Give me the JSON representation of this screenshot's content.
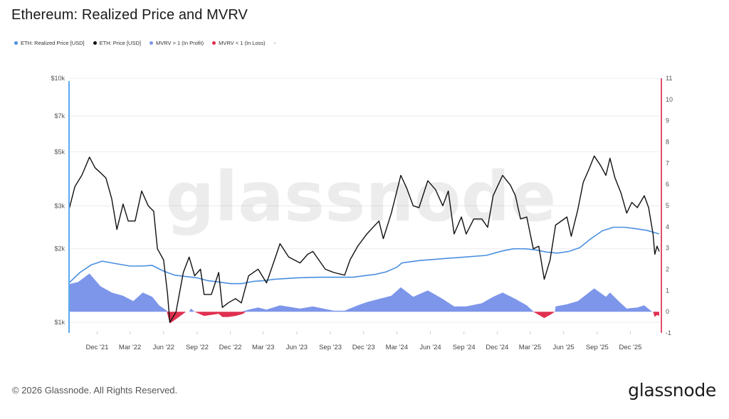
{
  "page": {
    "title": "Ethereum: Realized Price and MVRV",
    "copyright": "© 2026 Glassnode. All Rights Reserved.",
    "brand": "glassnode",
    "watermark": "glassnode"
  },
  "legend": [
    {
      "label": "ETH: Realized Price [USD]",
      "color": "#4a8fe0"
    },
    {
      "label": "ETH: Price [USD]",
      "color": "#111111"
    },
    {
      "label": "MVRV > 1 (In Profit)",
      "color": "#7d96ea"
    },
    {
      "label": "MVRV < 1 (In Loss)",
      "color": "#e03050"
    }
  ],
  "legend_extra": "-",
  "colors": {
    "price": "#111111",
    "realized": "#4a8fe0",
    "profit": "#7d96ea",
    "loss": "#e03050",
    "left_axis": "#5aaaf0",
    "right_axis": "#e0506e",
    "grid": "#ececec"
  },
  "chart_data": {
    "type": "line",
    "title": "Ethereum: Realized Price and MVRV",
    "y_left": {
      "scale": "log",
      "range": [
        1000,
        10000
      ],
      "ticks": [
        1000,
        2000,
        3000,
        5000,
        7000,
        10000
      ],
      "tick_labels": [
        "$1k",
        "$2k",
        "$3k",
        "$5k",
        "$7k",
        "$10k"
      ]
    },
    "y_right": {
      "scale": "linear",
      "range": [
        -1,
        11
      ],
      "ticks": [
        -1,
        0,
        1,
        2,
        3,
        4,
        5,
        6,
        7,
        8,
        9,
        10,
        11
      ],
      "tick_labels": [
        "-1",
        "0",
        "1",
        "2",
        "3",
        "4",
        "5",
        "6",
        "7",
        "8",
        "9",
        "10",
        "11"
      ]
    },
    "x": {
      "range": [
        "2021-09-15",
        "2026-02-20"
      ],
      "ticks": [
        "2021-12-01",
        "2022-03-01",
        "2022-06-01",
        "2022-09-01",
        "2022-12-01",
        "2023-03-01",
        "2023-06-01",
        "2023-09-01",
        "2023-12-01",
        "2024-03-01",
        "2024-06-01",
        "2024-09-01",
        "2024-12-01",
        "2025-03-01",
        "2025-06-01",
        "2025-09-01",
        "2025-12-01"
      ],
      "tick_labels": [
        "Dec '21",
        "Mar '22",
        "Jun '22",
        "Sep '22",
        "Dec '22",
        "Mar '23",
        "Jun '23",
        "Sep '23",
        "Dec '23",
        "Mar '24",
        "Jun '24",
        "Sep '24",
        "Dec '24",
        "Mar '25",
        "Jun '25",
        "Sep '25",
        "Dec '25"
      ]
    },
    "grid": true,
    "series": [
      {
        "name": "ETH: Price [USD]",
        "axis": "left",
        "points": [
          [
            "2021-09-15",
            2900
          ],
          [
            "2021-10-01",
            3600
          ],
          [
            "2021-10-20",
            4000
          ],
          [
            "2021-11-10",
            4750
          ],
          [
            "2021-11-25",
            4300
          ],
          [
            "2021-12-10",
            4100
          ],
          [
            "2021-12-25",
            3900
          ],
          [
            "2022-01-10",
            3200
          ],
          [
            "2022-01-24",
            2400
          ],
          [
            "2022-02-10",
            3050
          ],
          [
            "2022-02-24",
            2600
          ],
          [
            "2022-03-15",
            2600
          ],
          [
            "2022-04-02",
            3450
          ],
          [
            "2022-04-20",
            3000
          ],
          [
            "2022-05-05",
            2850
          ],
          [
            "2022-05-15",
            2000
          ],
          [
            "2022-06-01",
            1800
          ],
          [
            "2022-06-12",
            1300
          ],
          [
            "2022-06-18",
            1000
          ],
          [
            "2022-07-05",
            1100
          ],
          [
            "2022-07-25",
            1600
          ],
          [
            "2022-08-10",
            1850
          ],
          [
            "2022-08-25",
            1550
          ],
          [
            "2022-09-10",
            1650
          ],
          [
            "2022-09-20",
            1300
          ],
          [
            "2022-10-10",
            1300
          ],
          [
            "2022-10-30",
            1600
          ],
          [
            "2022-11-09",
            1150
          ],
          [
            "2022-11-25",
            1200
          ],
          [
            "2022-12-15",
            1250
          ],
          [
            "2022-12-31",
            1200
          ],
          [
            "2023-01-20",
            1550
          ],
          [
            "2023-02-15",
            1650
          ],
          [
            "2023-03-10",
            1450
          ],
          [
            "2023-04-01",
            1800
          ],
          [
            "2023-04-16",
            2100
          ],
          [
            "2023-05-10",
            1850
          ],
          [
            "2023-06-10",
            1750
          ],
          [
            "2023-07-01",
            1900
          ],
          [
            "2023-07-15",
            1950
          ],
          [
            "2023-08-18",
            1650
          ],
          [
            "2023-09-10",
            1600
          ],
          [
            "2023-10-10",
            1560
          ],
          [
            "2023-10-25",
            1800
          ],
          [
            "2023-11-15",
            2050
          ],
          [
            "2023-12-10",
            2300
          ],
          [
            "2024-01-12",
            2600
          ],
          [
            "2024-01-24",
            2200
          ],
          [
            "2024-02-15",
            2800
          ],
          [
            "2024-03-12",
            4000
          ],
          [
            "2024-03-28",
            3550
          ],
          [
            "2024-04-15",
            3000
          ],
          [
            "2024-05-01",
            2950
          ],
          [
            "2024-05-25",
            3800
          ],
          [
            "2024-06-15",
            3500
          ],
          [
            "2024-07-05",
            3000
          ],
          [
            "2024-07-20",
            3450
          ],
          [
            "2024-08-05",
            2300
          ],
          [
            "2024-08-25",
            2700
          ],
          [
            "2024-09-07",
            2300
          ],
          [
            "2024-09-28",
            2650
          ],
          [
            "2024-10-20",
            2650
          ],
          [
            "2024-11-05",
            2450
          ],
          [
            "2024-11-20",
            3300
          ],
          [
            "2024-12-16",
            4000
          ],
          [
            "2025-01-06",
            3650
          ],
          [
            "2025-01-20",
            3300
          ],
          [
            "2025-02-03",
            2650
          ],
          [
            "2025-02-20",
            2700
          ],
          [
            "2025-03-10",
            2000
          ],
          [
            "2025-03-25",
            2050
          ],
          [
            "2025-04-09",
            1500
          ],
          [
            "2025-04-25",
            1800
          ],
          [
            "2025-05-10",
            2500
          ],
          [
            "2025-06-10",
            2700
          ],
          [
            "2025-06-22",
            2250
          ],
          [
            "2025-07-10",
            2900
          ],
          [
            "2025-07-25",
            3750
          ],
          [
            "2025-08-10",
            4250
          ],
          [
            "2025-08-24",
            4800
          ],
          [
            "2025-09-10",
            4400
          ],
          [
            "2025-09-25",
            4000
          ],
          [
            "2025-10-06",
            4700
          ],
          [
            "2025-10-20",
            3900
          ],
          [
            "2025-11-05",
            3400
          ],
          [
            "2025-11-21",
            2800
          ],
          [
            "2025-12-05",
            3100
          ],
          [
            "2025-12-20",
            2950
          ],
          [
            "2026-01-08",
            3300
          ],
          [
            "2026-01-20",
            2950
          ],
          [
            "2026-02-01",
            2300
          ],
          [
            "2026-02-06",
            1900
          ],
          [
            "2026-02-12",
            2050
          ],
          [
            "2026-02-18",
            1950
          ]
        ]
      },
      {
        "name": "ETH: Realized Price [USD]",
        "axis": "left",
        "points": [
          [
            "2021-09-15",
            1450
          ],
          [
            "2021-10-15",
            1600
          ],
          [
            "2021-11-15",
            1720
          ],
          [
            "2021-12-15",
            1780
          ],
          [
            "2022-01-20",
            1740
          ],
          [
            "2022-03-01",
            1700
          ],
          [
            "2022-04-01",
            1700
          ],
          [
            "2022-05-01",
            1710
          ],
          [
            "2022-06-01",
            1620
          ],
          [
            "2022-07-01",
            1560
          ],
          [
            "2022-08-01",
            1540
          ],
          [
            "2022-09-01",
            1520
          ],
          [
            "2022-10-01",
            1480
          ],
          [
            "2022-11-01",
            1460
          ],
          [
            "2022-12-01",
            1440
          ],
          [
            "2023-01-01",
            1440
          ],
          [
            "2023-02-01",
            1470
          ],
          [
            "2023-03-01",
            1480
          ],
          [
            "2023-04-01",
            1500
          ],
          [
            "2023-06-01",
            1520
          ],
          [
            "2023-08-01",
            1530
          ],
          [
            "2023-09-01",
            1530
          ],
          [
            "2023-11-01",
            1530
          ],
          [
            "2024-01-01",
            1570
          ],
          [
            "2024-02-01",
            1610
          ],
          [
            "2024-03-01",
            1680
          ],
          [
            "2024-03-15",
            1750
          ],
          [
            "2024-05-01",
            1790
          ],
          [
            "2024-07-01",
            1820
          ],
          [
            "2024-09-01",
            1850
          ],
          [
            "2024-11-01",
            1880
          ],
          [
            "2024-12-15",
            1960
          ],
          [
            "2025-01-15",
            2000
          ],
          [
            "2025-02-15",
            2000
          ],
          [
            "2025-03-15",
            1980
          ],
          [
            "2025-04-15",
            1940
          ],
          [
            "2025-05-15",
            1920
          ],
          [
            "2025-06-15",
            1950
          ],
          [
            "2025-07-15",
            2020
          ],
          [
            "2025-08-15",
            2200
          ],
          [
            "2025-09-15",
            2370
          ],
          [
            "2025-10-15",
            2450
          ],
          [
            "2025-11-15",
            2450
          ],
          [
            "2025-12-15",
            2420
          ],
          [
            "2026-01-15",
            2380
          ],
          [
            "2026-02-18",
            2300
          ]
        ]
      },
      {
        "name": "MVRV > 1 (In Profit)",
        "axis": "right",
        "points": [
          [
            "2021-09-15",
            1.3
          ],
          [
            "2021-10-10",
            1.4
          ],
          [
            "2021-11-10",
            1.8
          ],
          [
            "2021-12-10",
            1.2
          ],
          [
            "2022-01-10",
            0.9
          ],
          [
            "2022-02-10",
            0.75
          ],
          [
            "2022-03-10",
            0.5
          ],
          [
            "2022-04-05",
            0.9
          ],
          [
            "2022-05-01",
            0.7
          ],
          [
            "2022-05-20",
            0.3
          ],
          [
            "2022-06-10",
            0.05
          ],
          [
            "2022-06-12",
            0
          ],
          [
            "2022-08-10",
            0
          ],
          [
            "2022-08-15",
            0.15
          ],
          [
            "2022-08-25",
            0
          ],
          [
            "2022-12-31",
            0
          ],
          [
            "2023-01-20",
            0.1
          ],
          [
            "2023-02-15",
            0.2
          ],
          [
            "2023-03-10",
            0.1
          ],
          [
            "2023-04-16",
            0.3
          ],
          [
            "2023-06-10",
            0.15
          ],
          [
            "2023-07-15",
            0.25
          ],
          [
            "2023-09-10",
            0.05
          ],
          [
            "2023-10-10",
            0.05
          ],
          [
            "2023-11-15",
            0.3
          ],
          [
            "2023-12-10",
            0.45
          ],
          [
            "2024-01-12",
            0.6
          ],
          [
            "2024-02-15",
            0.75
          ],
          [
            "2024-03-12",
            1.15
          ],
          [
            "2024-04-15",
            0.7
          ],
          [
            "2024-05-25",
            1.0
          ],
          [
            "2024-07-05",
            0.6
          ],
          [
            "2024-08-05",
            0.25
          ],
          [
            "2024-09-07",
            0.25
          ],
          [
            "2024-10-20",
            0.4
          ],
          [
            "2024-11-20",
            0.7
          ],
          [
            "2024-12-16",
            0.9
          ],
          [
            "2025-01-20",
            0.6
          ],
          [
            "2025-02-20",
            0.3
          ],
          [
            "2025-03-10",
            0.02
          ],
          [
            "2025-03-12",
            0
          ],
          [
            "2025-05-08",
            0
          ],
          [
            "2025-05-10",
            0.25
          ],
          [
            "2025-06-10",
            0.35
          ],
          [
            "2025-07-10",
            0.5
          ],
          [
            "2025-08-24",
            1.1
          ],
          [
            "2025-09-25",
            0.7
          ],
          [
            "2025-10-06",
            0.9
          ],
          [
            "2025-11-05",
            0.4
          ],
          [
            "2025-11-21",
            0.15
          ],
          [
            "2025-12-20",
            0.2
          ],
          [
            "2026-01-08",
            0.3
          ],
          [
            "2026-01-28",
            0.02
          ],
          [
            "2026-02-01",
            0
          ]
        ]
      },
      {
        "name": "MVRV < 1 (In Loss)",
        "axis": "right",
        "points": [
          [
            "2022-06-10",
            0
          ],
          [
            "2022-06-18",
            -0.55
          ],
          [
            "2022-07-05",
            -0.35
          ],
          [
            "2022-07-25",
            -0.1
          ],
          [
            "2022-08-01",
            0
          ],
          [
            "2022-08-25",
            0
          ],
          [
            "2022-09-20",
            -0.2
          ],
          [
            "2022-10-30",
            -0.1
          ],
          [
            "2022-11-09",
            -0.25
          ],
          [
            "2022-11-25",
            -0.25
          ],
          [
            "2022-12-15",
            -0.2
          ],
          [
            "2023-01-05",
            -0.1
          ],
          [
            "2023-01-12",
            0
          ],
          [
            "2025-03-10",
            0
          ],
          [
            "2025-03-25",
            -0.15
          ],
          [
            "2025-04-09",
            -0.3
          ],
          [
            "2025-04-25",
            -0.15
          ],
          [
            "2025-05-08",
            0
          ],
          [
            "2026-02-01",
            0
          ],
          [
            "2026-02-06",
            -0.25
          ],
          [
            "2026-02-12",
            -0.15
          ],
          [
            "2026-02-18",
            -0.2
          ]
        ]
      }
    ]
  }
}
